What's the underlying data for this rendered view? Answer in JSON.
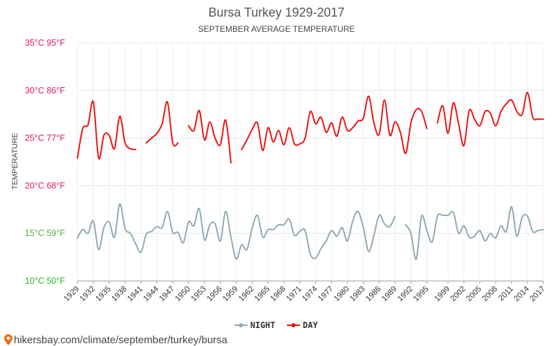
{
  "chart_data": {
    "type": "line",
    "title": "Bursa Turkey 1929-2017",
    "subtitle": "SEPTEMBER AVERAGE TEMPERATURE",
    "ylabel": "TEMPERATURE",
    "xlabel": "",
    "ylim": [
      10,
      35
    ],
    "yticks": [
      {
        "value": 10,
        "label": "10°C 50°F",
        "color": "#22bb22"
      },
      {
        "value": 15,
        "label": "15°C 59°F",
        "color": "#55aa33"
      },
      {
        "value": 20,
        "label": "20°C 68°F",
        "color": "#e0156b"
      },
      {
        "value": 25,
        "label": "25°C 77°F",
        "color": "#e0156b"
      },
      {
        "value": 30,
        "label": "30°C 86°F",
        "color": "#e0156b"
      },
      {
        "value": 35,
        "label": "35°C 95°F",
        "color": "#e0156b"
      }
    ],
    "xticks": [
      "1929",
      "1932",
      "1935",
      "1938",
      "1941",
      "1944",
      "1947",
      "1950",
      "1953",
      "1956",
      "1959",
      "1962",
      "1965",
      "1968",
      "1971",
      "1974",
      "1977",
      "1980",
      "1983",
      "1986",
      "1989",
      "1992",
      "1995",
      "1999",
      "2002",
      "2005",
      "2008",
      "2011",
      "2014",
      "2017"
    ],
    "grid": true,
    "legend_position": "bottom-center",
    "series": [
      {
        "name": "NIGHT",
        "color": "#8fa9b4",
        "values": [
          [
            1929,
            14.5
          ],
          [
            1930,
            15.4
          ],
          [
            1931,
            15.0
          ],
          [
            1932,
            16.3
          ],
          [
            1933,
            13.3
          ],
          [
            1934,
            15.6
          ],
          [
            1935,
            16.2
          ],
          [
            1936,
            14.6
          ],
          [
            1937,
            18.1
          ],
          [
            1938,
            15.5
          ],
          [
            1939,
            15.0
          ],
          [
            1940,
            13.9
          ],
          [
            1941,
            13.0
          ],
          [
            1942,
            14.9
          ],
          [
            1943,
            15.2
          ],
          [
            1944,
            15.7
          ],
          [
            1945,
            15.6
          ],
          [
            1946,
            17.3
          ],
          [
            1947,
            15.1
          ],
          [
            1948,
            15.1
          ],
          [
            1949,
            14.0
          ],
          [
            1950,
            16.2
          ],
          [
            1951,
            15.8
          ],
          [
            1952,
            17.6
          ],
          [
            1953,
            14.3
          ],
          [
            1954,
            15.9
          ],
          [
            1955,
            16.0
          ],
          [
            1956,
            14.2
          ],
          [
            1957,
            17.3
          ],
          [
            1958,
            14.6
          ],
          [
            1959,
            12.3
          ],
          [
            1960,
            13.8
          ],
          [
            1961,
            13.3
          ],
          [
            1962,
            15.5
          ],
          [
            1963,
            16.9
          ],
          [
            1964,
            14.6
          ],
          [
            1965,
            15.4
          ],
          [
            1966,
            15.4
          ],
          [
            1967,
            15.9
          ],
          [
            1968,
            15.9
          ],
          [
            1969,
            16.5
          ],
          [
            1970,
            14.8
          ],
          [
            1971,
            15.2
          ],
          [
            1972,
            15.3
          ],
          [
            1973,
            12.8
          ],
          [
            1974,
            12.4
          ],
          [
            1975,
            13.4
          ],
          [
            1976,
            14.2
          ],
          [
            1977,
            15.3
          ],
          [
            1978,
            14.7
          ],
          [
            1979,
            15.6
          ],
          [
            1980,
            14.2
          ],
          [
            1981,
            16.3
          ],
          [
            1982,
            17.3
          ],
          [
            1983,
            15.6
          ],
          [
            1984,
            13.1
          ],
          [
            1985,
            14.8
          ],
          [
            1986,
            16.9
          ],
          [
            1987,
            16.0
          ],
          [
            1988,
            15.7
          ],
          [
            1989,
            16.8
          ],
          null,
          [
            1991,
            15.9
          ],
          [
            1992,
            15.0
          ],
          [
            1993,
            12.3
          ],
          [
            1994,
            16.8
          ],
          [
            1995,
            15.3
          ],
          [
            1996,
            14.1
          ],
          [
            1997,
            16.8
          ],
          [
            1998,
            16.9
          ],
          [
            1999,
            16.9
          ],
          [
            2000,
            17.2
          ],
          [
            2001,
            15.0
          ],
          [
            2002,
            15.8
          ],
          [
            2003,
            14.6
          ],
          [
            2004,
            14.7
          ],
          [
            2005,
            15.3
          ],
          [
            2006,
            14.2
          ],
          [
            2007,
            15.0
          ],
          [
            2008,
            14.5
          ],
          [
            2009,
            15.8
          ],
          [
            2010,
            15.2
          ],
          [
            2011,
            17.8
          ],
          [
            2012,
            14.7
          ],
          [
            2013,
            16.7
          ],
          [
            2014,
            16.8
          ],
          [
            2015,
            15.2
          ],
          [
            2016,
            15.3
          ],
          [
            2017,
            15.4
          ]
        ]
      },
      {
        "name": "DAY",
        "color": "#ee1111",
        "values": [
          [
            1929,
            22.9
          ],
          [
            1930,
            26.0
          ],
          [
            1931,
            26.4
          ],
          [
            1932,
            28.8
          ],
          [
            1933,
            22.9
          ],
          [
            1934,
            25.3
          ],
          [
            1935,
            25.3
          ],
          [
            1936,
            23.9
          ],
          [
            1937,
            27.3
          ],
          [
            1938,
            24.5
          ],
          [
            1939,
            23.9
          ],
          [
            1940,
            23.8
          ],
          null,
          [
            1942,
            24.5
          ],
          [
            1943,
            25.0
          ],
          [
            1944,
            25.5
          ],
          [
            1945,
            26.5
          ],
          [
            1946,
            28.8
          ],
          [
            1947,
            24.5
          ],
          [
            1948,
            24.5
          ],
          null,
          [
            1950,
            26.3
          ],
          [
            1951,
            25.8
          ],
          [
            1952,
            27.9
          ],
          [
            1953,
            24.8
          ],
          [
            1954,
            26.7
          ],
          [
            1955,
            25.0
          ],
          [
            1956,
            24.3
          ],
          [
            1957,
            26.9
          ],
          [
            1958,
            22.4
          ],
          null,
          [
            1960,
            23.8
          ],
          [
            1961,
            24.8
          ],
          [
            1962,
            25.9
          ],
          [
            1963,
            26.6
          ],
          [
            1964,
            23.7
          ],
          [
            1965,
            26.1
          ],
          [
            1966,
            24.6
          ],
          [
            1967,
            25.8
          ],
          [
            1968,
            24.3
          ],
          [
            1969,
            26.1
          ],
          [
            1970,
            24.4
          ],
          [
            1971,
            24.4
          ],
          [
            1972,
            25.0
          ],
          [
            1973,
            27.8
          ],
          [
            1974,
            26.5
          ],
          [
            1975,
            27.2
          ],
          [
            1976,
            25.6
          ],
          [
            1977,
            26.6
          ],
          [
            1978,
            25.2
          ],
          [
            1979,
            27.2
          ],
          [
            1980,
            25.8
          ],
          [
            1981,
            26.1
          ],
          [
            1982,
            26.8
          ],
          [
            1983,
            27.1
          ],
          [
            1984,
            29.4
          ],
          [
            1985,
            26.6
          ],
          [
            1986,
            25.4
          ],
          [
            1987,
            29.0
          ],
          [
            1988,
            25.3
          ],
          [
            1989,
            26.7
          ],
          [
            1990,
            25.6
          ],
          [
            1991,
            23.4
          ],
          [
            1992,
            26.6
          ],
          [
            1993,
            28.0
          ],
          [
            1994,
            27.8
          ],
          [
            1995,
            26.0
          ],
          null,
          [
            1997,
            26.6
          ],
          [
            1998,
            28.4
          ],
          [
            1999,
            25.5
          ],
          [
            2000,
            28.7
          ],
          [
            2001,
            26.5
          ],
          [
            2002,
            24.2
          ],
          [
            2003,
            27.9
          ],
          [
            2004,
            27.0
          ],
          [
            2005,
            26.3
          ],
          [
            2006,
            27.8
          ],
          [
            2007,
            27.6
          ],
          [
            2008,
            26.3
          ],
          [
            2009,
            27.8
          ],
          [
            2010,
            28.6
          ],
          [
            2011,
            29.0
          ],
          [
            2012,
            27.8
          ],
          [
            2013,
            27.5
          ],
          [
            2014,
            29.8
          ],
          [
            2015,
            27.2
          ],
          [
            2016,
            27.0
          ],
          [
            2017,
            27.0
          ]
        ]
      }
    ]
  },
  "footer": {
    "url": "hikersbay.com/climate/september/turkey/bursa",
    "pin_icon": "location-pin-icon"
  }
}
